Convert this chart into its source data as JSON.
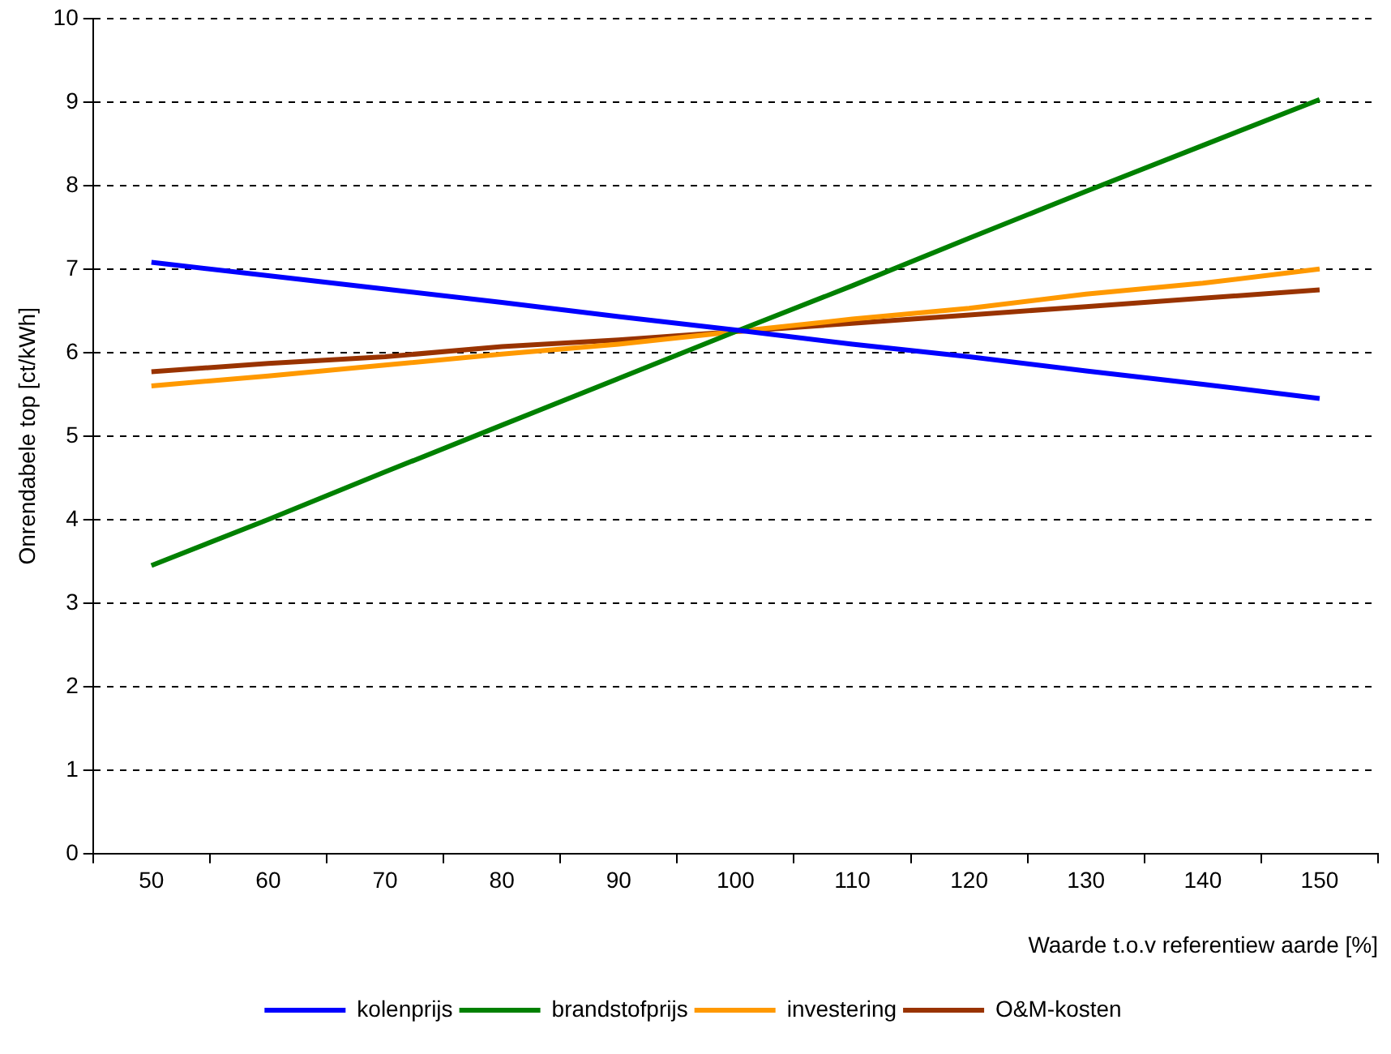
{
  "chart_data": {
    "type": "line",
    "xlabel": "Waarde t.o.v referentiew aarde [%]",
    "ylabel": "Onrendabele top [ct/kWh]",
    "categories": [
      "50",
      "60",
      "70",
      "80",
      "90",
      "100",
      "110",
      "120",
      "130",
      "140",
      "150"
    ],
    "series": [
      {
        "name": "kolenprijs",
        "color": "#0000ff",
        "values": [
          7.08,
          6.92,
          6.76,
          6.6,
          6.43,
          6.27,
          6.1,
          5.95,
          5.78,
          5.62,
          5.45
        ]
      },
      {
        "name": "brandstofprijs",
        "color": "#008000",
        "values": [
          3.45,
          4.0,
          4.57,
          5.13,
          5.69,
          6.25,
          6.8,
          7.37,
          7.93,
          8.48,
          9.03
        ]
      },
      {
        "name": "investering",
        "color": "#ff9900",
        "values": [
          5.6,
          5.72,
          5.85,
          5.98,
          6.1,
          6.25,
          6.4,
          6.53,
          6.7,
          6.83,
          7.0
        ]
      },
      {
        "name": "O&M-kosten",
        "color": "#993300",
        "values": [
          5.77,
          5.87,
          5.95,
          6.07,
          6.15,
          6.25,
          6.35,
          6.45,
          6.55,
          6.65,
          6.75
        ]
      }
    ],
    "ylim": [
      0,
      10
    ],
    "yticks": [
      0,
      1,
      2,
      3,
      4,
      5,
      6,
      7,
      8,
      9,
      10
    ],
    "grid": "y",
    "legend": "bottom",
    "marker": "none",
    "line_style": "solid"
  }
}
